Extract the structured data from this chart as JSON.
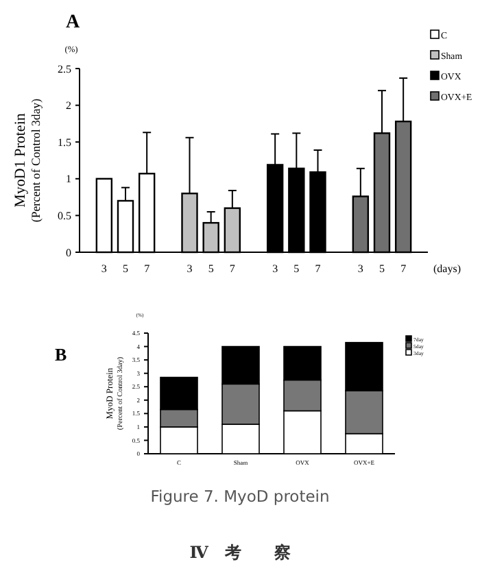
{
  "chart_data": [
    {
      "type": "bar",
      "title": "A",
      "ylabel": "MyoD1 Protein\n(Percent of Control 3day)",
      "xlabel": "(days)",
      "annotations": [
        "(%)"
      ],
      "categories": [
        "3",
        "5",
        "7",
        null,
        "3",
        "5",
        "7",
        null,
        "3",
        "5",
        "7",
        null,
        "3",
        "5",
        "7"
      ],
      "series": [
        {
          "name": "C",
          "color": "#ffffff",
          "values": [
            1.0,
            0.7,
            1.07,
            null,
            null,
            null,
            null,
            null,
            null,
            null,
            null,
            null,
            null,
            null,
            null
          ],
          "errors": [
            null,
            [
              0.7,
              0.88
            ],
            [
              1.07,
              1.63
            ],
            null,
            null,
            null,
            null,
            null,
            null,
            null,
            null,
            null,
            null,
            null,
            null
          ]
        },
        {
          "name": "Sham",
          "color": "#c0c0c0",
          "values": [
            null,
            null,
            null,
            null,
            0.8,
            0.4,
            0.6,
            null,
            null,
            null,
            null,
            null,
            null,
            null,
            null
          ],
          "errors": [
            null,
            null,
            null,
            null,
            [
              0.8,
              1.56
            ],
            [
              0.4,
              0.55
            ],
            [
              0.6,
              0.84
            ],
            null,
            null,
            null,
            null,
            null,
            null,
            null,
            null
          ]
        },
        {
          "name": "OVX",
          "color": "#000000",
          "values": [
            null,
            null,
            null,
            null,
            null,
            null,
            null,
            null,
            1.19,
            1.14,
            1.09,
            null,
            null,
            null,
            null
          ],
          "errors": [
            null,
            null,
            null,
            null,
            null,
            null,
            null,
            null,
            [
              1.19,
              1.61
            ],
            [
              1.14,
              1.62
            ],
            [
              1.09,
              1.39
            ],
            null,
            null,
            null,
            null
          ]
        },
        {
          "name": "OVX+E",
          "color": "#707070",
          "values": [
            null,
            null,
            null,
            null,
            null,
            null,
            null,
            null,
            null,
            null,
            null,
            null,
            0.76,
            1.62,
            1.78
          ],
          "errors": [
            null,
            null,
            null,
            null,
            null,
            null,
            null,
            null,
            null,
            null,
            null,
            null,
            [
              0.76,
              1.14
            ],
            [
              1.62,
              2.2
            ],
            [
              1.78,
              2.37
            ]
          ]
        }
      ],
      "ylim": [
        0,
        2.5
      ],
      "yticks": [
        0,
        0.5,
        1,
        1.5,
        2,
        2.5
      ],
      "legend": "top right",
      "grid": false
    },
    {
      "type": "bar",
      "stacked": true,
      "title": "B",
      "ylabel": "MyoD Protein\n(Percent of Control 3day)",
      "annotations": [
        "(%)",
        "Figure 7. MyoD protein",
        "Ⅳ　考　　察"
      ],
      "categories": [
        "C",
        "Sham",
        "OVX",
        "OVX+E"
      ],
      "series": [
        {
          "name": "3day",
          "color": "#ffffff",
          "values": [
            1.0,
            1.1,
            1.6,
            0.75
          ]
        },
        {
          "name": "5day",
          "color": "#777777",
          "values": [
            0.65,
            1.5,
            1.15,
            1.6
          ]
        },
        {
          "name": "7day",
          "color": "#000000",
          "values": [
            1.2,
            1.4,
            1.25,
            1.8
          ]
        }
      ],
      "ylim": [
        0,
        4.5
      ],
      "yticks": [
        0,
        0.5,
        1,
        1.5,
        2,
        2.5,
        3,
        3.5,
        4,
        4.5
      ],
      "legend": "top right",
      "grid": false
    }
  ]
}
